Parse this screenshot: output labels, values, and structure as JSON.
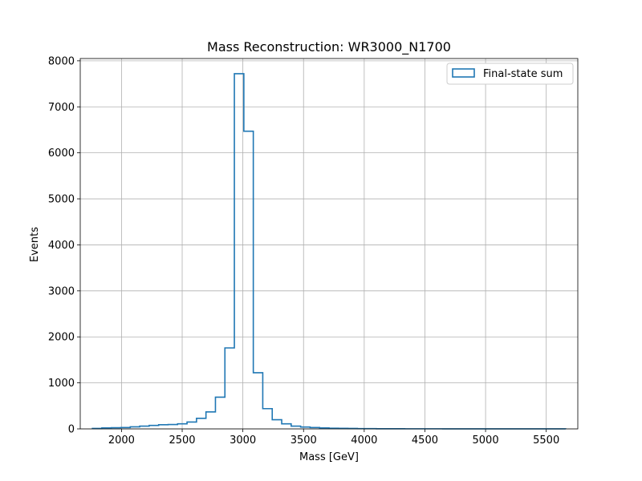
{
  "chart_data": {
    "type": "histogram",
    "title": "Mass Reconstruction: WR3000_N1700",
    "xlabel": "Mass [GeV]",
    "ylabel": "Events",
    "xlim": [
      1660,
      5760
    ],
    "ylim": [
      0,
      8050
    ],
    "xticks": [
      2000,
      2500,
      3000,
      3500,
      4000,
      4500,
      5000,
      5500
    ],
    "yticks": [
      0,
      1000,
      2000,
      3000,
      4000,
      5000,
      6000,
      7000,
      8000
    ],
    "grid": true,
    "legend": {
      "position": "top-right",
      "entries": [
        "Final-state sum"
      ]
    },
    "series": [
      {
        "name": "Final-state sum",
        "color": "#1f77b4",
        "histtype": "step",
        "bin_edges": [
          1760,
          1838,
          1916,
          1994,
          2072,
          2150,
          2228,
          2306,
          2384,
          2462,
          2540,
          2618,
          2696,
          2774,
          2852,
          2930,
          3008,
          3086,
          3164,
          3242,
          3320,
          3398,
          3476,
          3554,
          3632,
          3710,
          3788,
          3866,
          3944,
          4022,
          4100,
          4178,
          4256,
          4334,
          4412,
          4490,
          4568,
          4646,
          4724,
          4802,
          4880,
          4958,
          5036,
          5114,
          5192,
          5270,
          5348,
          5426,
          5504,
          5582,
          5660
        ],
        "counts": [
          10,
          20,
          25,
          30,
          45,
          60,
          75,
          90,
          95,
          110,
          150,
          230,
          370,
          690,
          1760,
          7720,
          6470,
          1220,
          440,
          200,
          110,
          60,
          40,
          30,
          20,
          15,
          12,
          10,
          6,
          5,
          4,
          3,
          3,
          2,
          2,
          2,
          2,
          1,
          1,
          1,
          1,
          1,
          1,
          1,
          1,
          1,
          1,
          1,
          1,
          1
        ]
      }
    ]
  }
}
